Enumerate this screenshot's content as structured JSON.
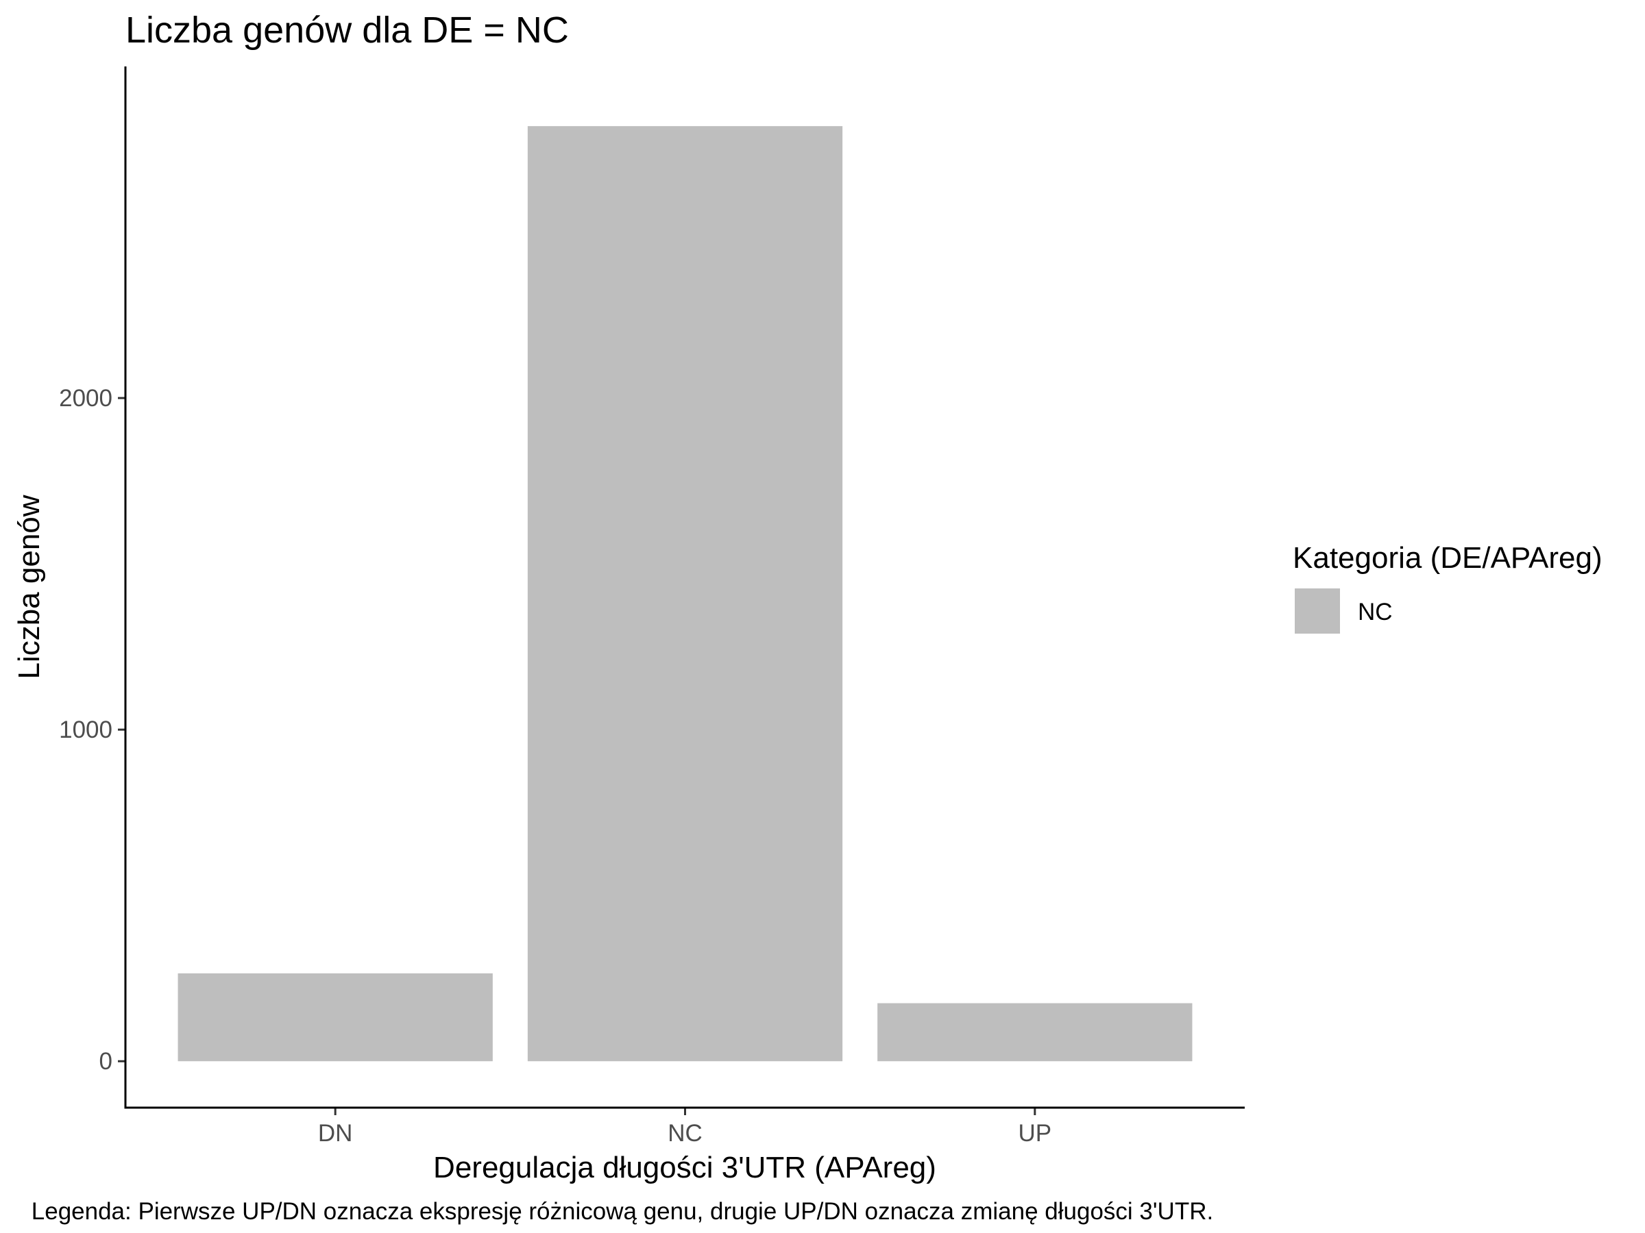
{
  "chart_data": {
    "type": "bar",
    "title": "Liczba genów dla DE = NC",
    "xlabel": "Deregulacja długości 3'UTR (APAreg)",
    "ylabel": "Liczba genów",
    "categories": [
      "DN",
      "NC",
      "UP"
    ],
    "series": [
      {
        "name": "NC",
        "values": [
          265,
          2820,
          175
        ]
      }
    ],
    "ylim": [
      -140,
      3000
    ],
    "yticks": [
      0,
      1000,
      2000
    ],
    "grid": false,
    "bar_color": "#bebebe",
    "legend": {
      "title": "Kategoria (DE/APAreg)",
      "position": "right",
      "entries": [
        {
          "label": "NC",
          "color": "#bebebe"
        }
      ]
    },
    "caption": "Legenda: Pierwsze UP/DN oznacza ekspresję różnicową genu, drugie UP/DN oznacza zmianę długości 3'UTR."
  }
}
